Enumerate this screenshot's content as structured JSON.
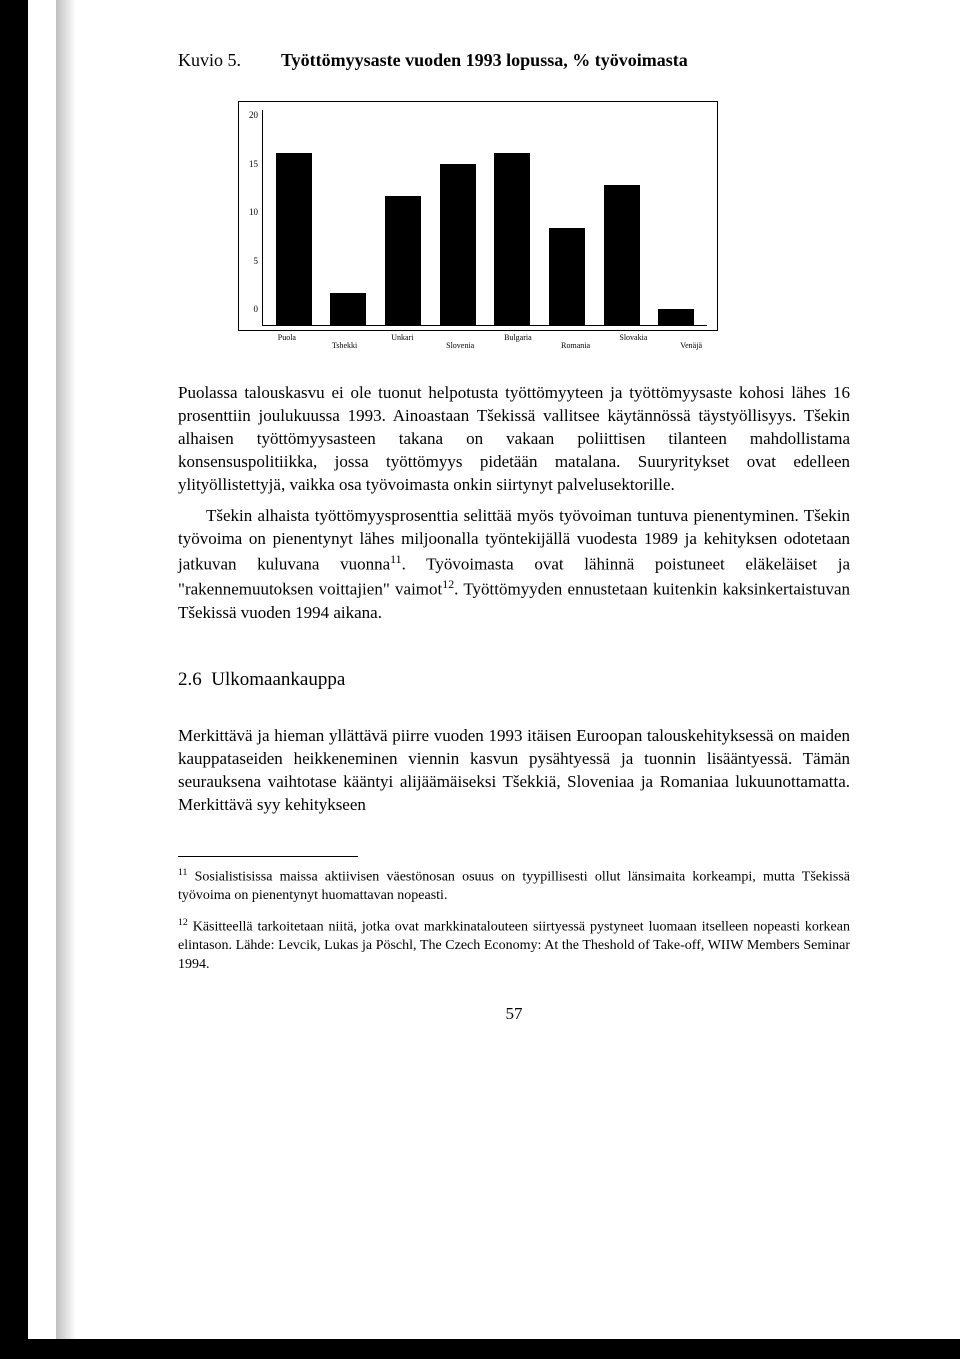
{
  "header": {
    "kuvio": "Kuvio 5.",
    "title": "Työttömyysaste vuoden 1993 lopussa, % työvoimasta"
  },
  "chart": {
    "type": "bar",
    "ylim": [
      0,
      20
    ],
    "yticks": [
      "20",
      "15",
      "10",
      "5",
      "0"
    ],
    "background_color": "#ffffff",
    "bar_color": "#000000",
    "border_color": "#000000",
    "categories": [
      "Puola",
      "Tshekki",
      "Unkari",
      "Slovenia",
      "Bulgaria",
      "Romania",
      "Slovakia",
      "Venäjä"
    ],
    "values": [
      16,
      3,
      12,
      15,
      16,
      9,
      13,
      1.5
    ],
    "category_offsets": [
      0,
      1,
      0,
      1,
      0,
      1,
      0,
      1
    ]
  },
  "paragraphs": {
    "p1": "Puolassa talouskasvu ei ole tuonut helpotusta työttömyyteen ja työttömyysaste kohosi lähes 16 prosenttiin joulukuussa 1993. Ainoastaan Tšekissä vallitsee käytännössä täystyöllisyys. Tšekin alhaisen työttömyysasteen takana on vakaan poliittisen tilanteen mahdollistama konsensuspolitiikka, jossa työttömyys pidetään matalana. Suuryritykset ovat edelleen ylityöllistettyjä, vaikka osa työvoimasta onkin siirtynyt palvelusektorille.",
    "p2a": "Tšekin alhaista työttömyysprosenttia selittää myös työvoiman tuntuva pienentyminen. Tšekin työvoima on pienentynyt lähes miljoonalla työntekijällä vuodesta 1989 ja kehityksen odotetaan jatkuvan kuluvana vuonna",
    "p2_sup1": "11",
    "p2b": ". Työvoimasta ovat lähinnä poistuneet eläkeläiset ja \"rakennemuutoksen voittajien\" vaimot",
    "p2_sup2": "12",
    "p2c": ". Työttömyyden ennustetaan kuitenkin kaksinkertaistuvan Tšekissä vuoden 1994 aikana.",
    "p3": "Merkittävä ja hieman yllättävä piirre vuoden 1993 itäisen Euroopan talouskehityksessä on maiden kauppataseiden heikkeneminen viennin kasvun pysähtyessä ja tuonnin lisääntyessä. Tämän seurauksena vaihtotase kääntyi alijäämäiseksi Tšekkiä, Sloveniaa ja Romaniaa lukuunottamatta. Merkittävä syy kehitykseen"
  },
  "section": {
    "num": "2.6",
    "title": "Ulkomaankauppa"
  },
  "footnotes": {
    "f11_sup": "11",
    "f11": " Sosialistisissa maissa aktiivisen väestönosan osuus on tyypillisesti ollut länsimaita korkeampi, mutta Tšekissä työvoima on pienentynyt huomattavan nopeasti.",
    "f12_sup": "12",
    "f12": " Käsitteellä tarkoitetaan niitä, jotka ovat markkinatalouteen siirtyessä pystyneet luomaan itselleen nopeasti korkean elintason. Lähde: Levcik, Lukas ja Pöschl, The Czech Economy: At the Theshold of Take-off, WIIW Members Seminar 1994."
  },
  "page_number": "57"
}
